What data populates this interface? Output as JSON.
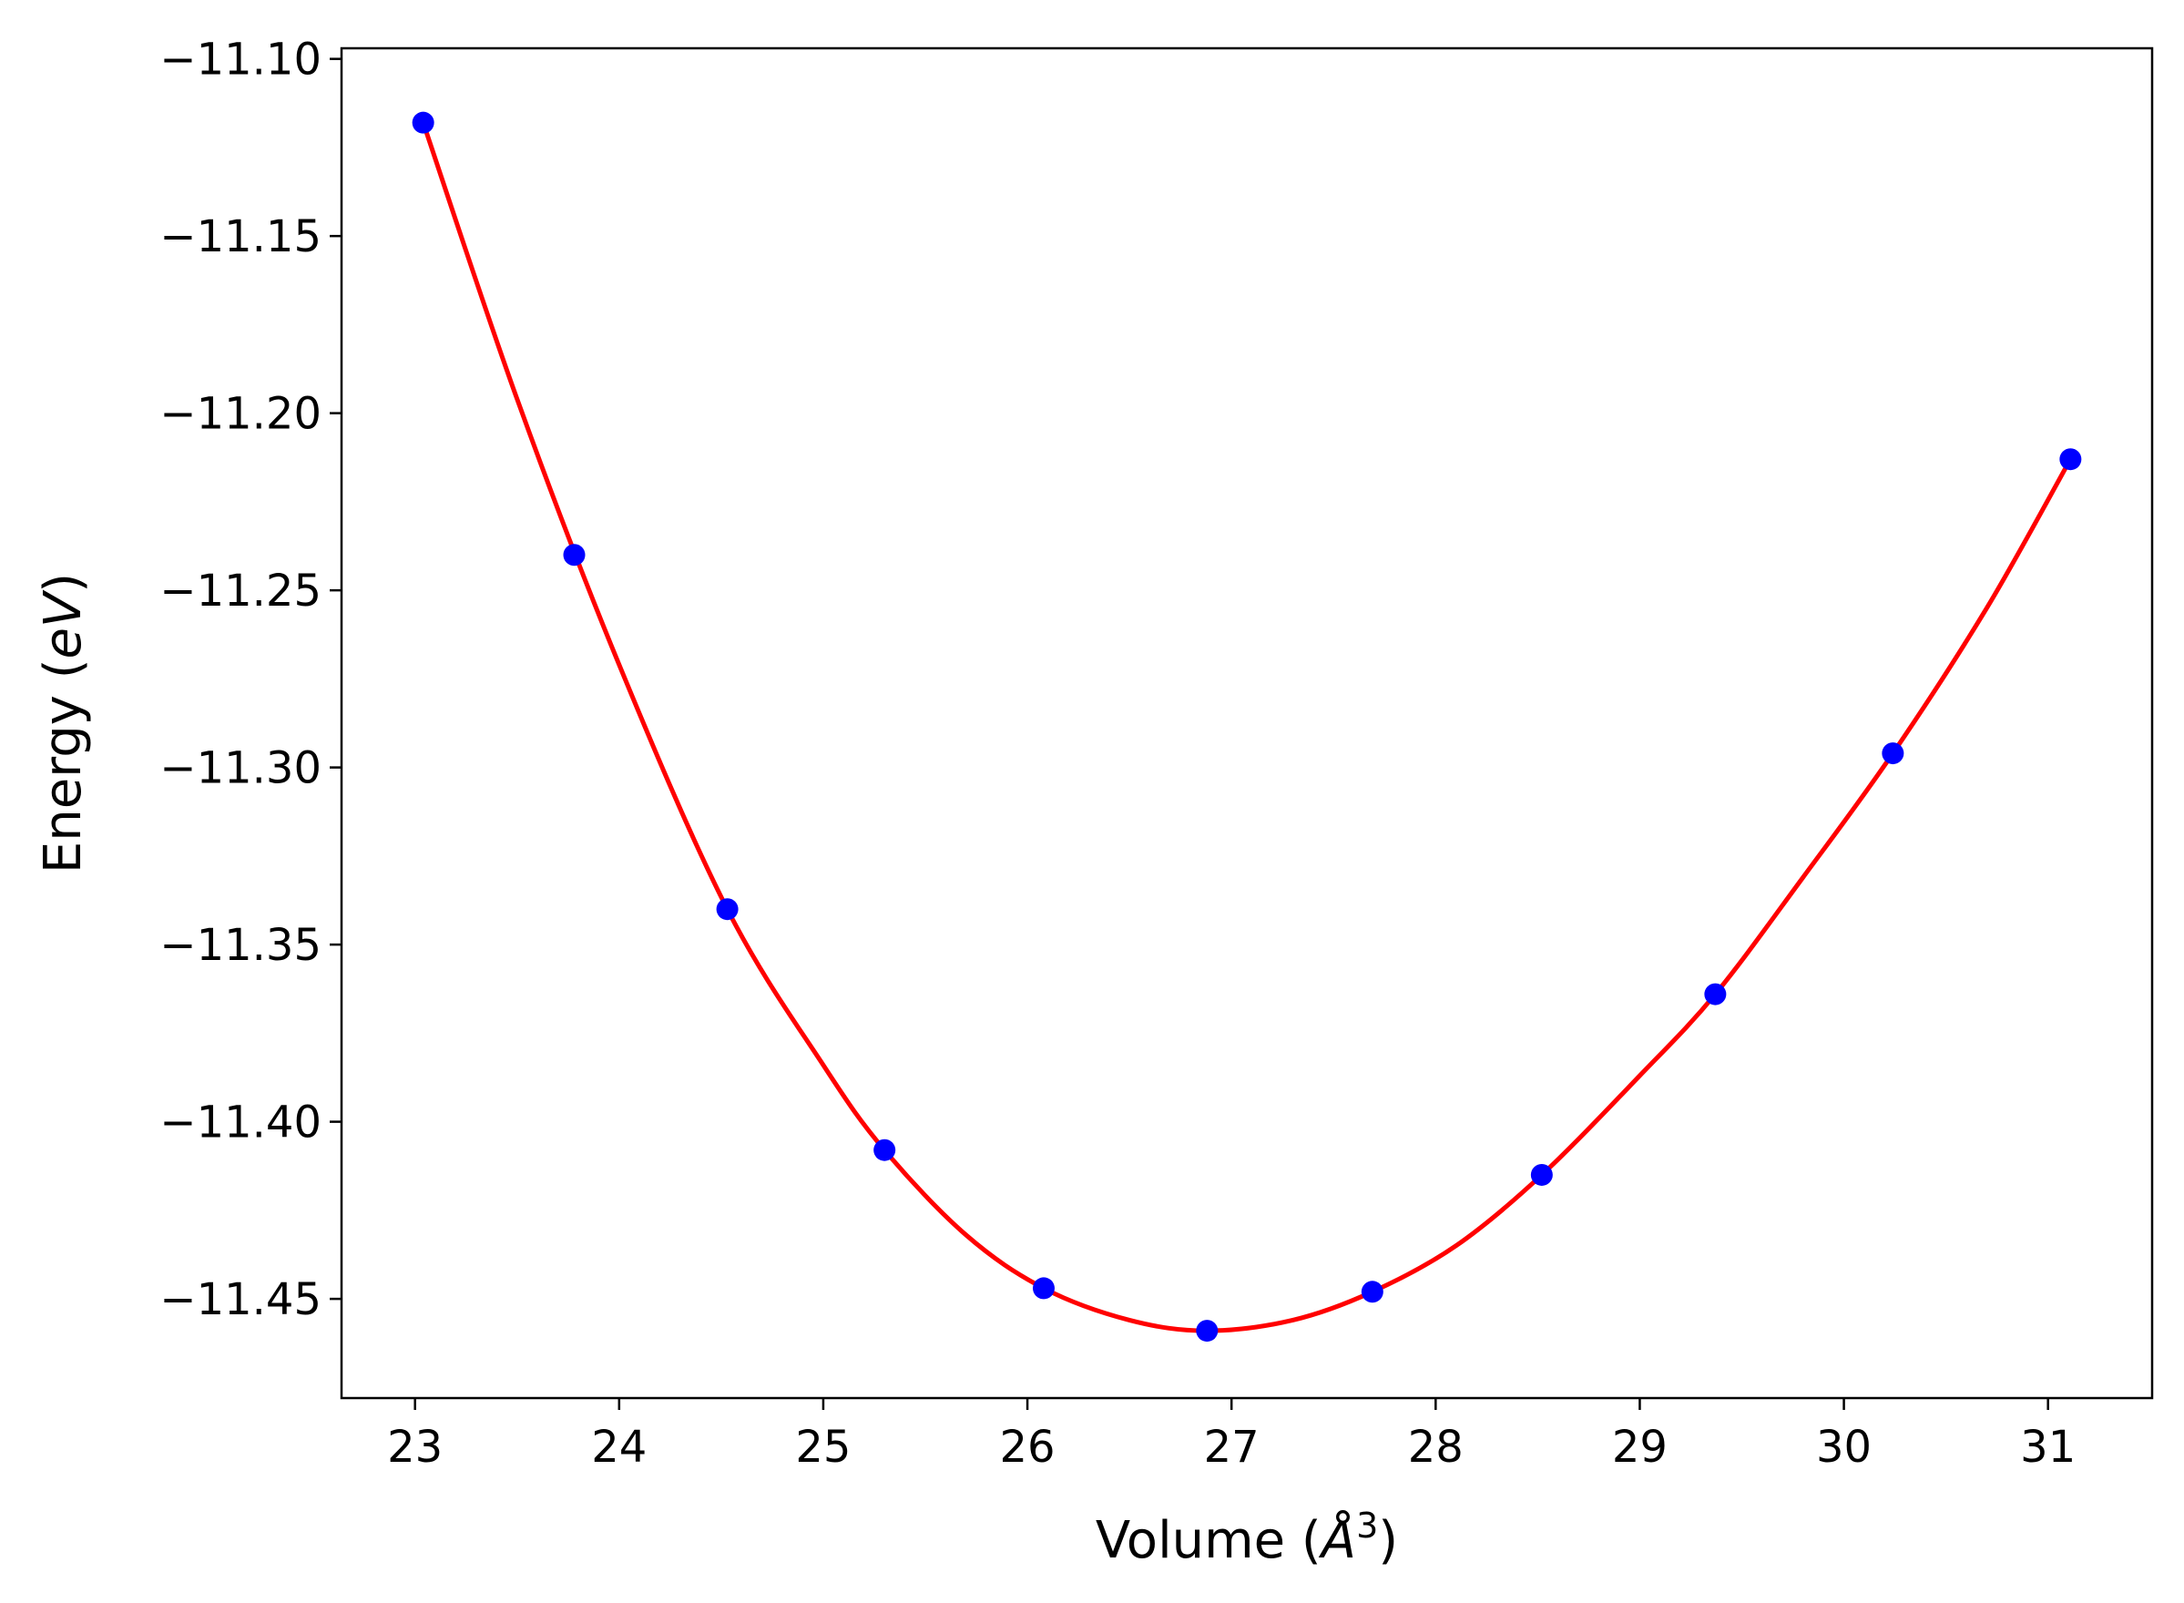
{
  "chart_data": {
    "type": "scatter",
    "xlabel": {
      "prefix": "Volume (",
      "symbol": "Å",
      "superscript": "3",
      "suffix": ")"
    },
    "ylabel": {
      "prefix": "Energy (",
      "symbol": "eV",
      "suffix": ")"
    },
    "xlim": [
      22.64,
      31.51
    ],
    "ylim": [
      -11.478,
      -11.097
    ],
    "xticks": [
      23,
      24,
      25,
      26,
      27,
      28,
      29,
      30,
      31
    ],
    "xtick_labels": [
      "23",
      "24",
      "25",
      "26",
      "27",
      "28",
      "29",
      "30",
      "31"
    ],
    "yticks": [
      -11.1,
      -11.15,
      -11.2,
      -11.25,
      -11.3,
      -11.35,
      -11.4,
      -11.45
    ],
    "ytick_labels": [
      "−11.10",
      "−11.15",
      "−11.20",
      "−11.25",
      "−11.30",
      "−11.35",
      "−11.40",
      "−11.45"
    ],
    "grid": false,
    "series": [
      {
        "kind": "points",
        "color": "#0000ff",
        "x": [
          23.04,
          23.78,
          24.53,
          25.3,
          26.08,
          26.88,
          27.69,
          28.52,
          29.37,
          30.24,
          31.11
        ],
        "y": [
          -11.118,
          -11.24,
          -11.34,
          -11.408,
          -11.447,
          -11.459,
          -11.448,
          -11.415,
          -11.364,
          -11.296,
          -11.213
        ]
      },
      {
        "kind": "fit-line",
        "color": "#ff0000",
        "x": [
          23.04,
          23.5,
          24.0,
          24.53,
          25.0,
          25.3,
          25.7,
          26.08,
          26.5,
          26.88,
          27.3,
          27.69,
          28.1,
          28.52,
          29.0,
          29.37,
          29.8,
          30.24,
          30.7,
          31.11
        ],
        "y": [
          -11.118,
          -11.196,
          -11.271,
          -11.34,
          -11.384,
          -11.408,
          -11.432,
          -11.447,
          -11.456,
          -11.459,
          -11.456,
          -11.448,
          -11.435,
          -11.415,
          -11.387,
          -11.364,
          -11.331,
          -11.296,
          -11.255,
          -11.213
        ]
      }
    ]
  }
}
